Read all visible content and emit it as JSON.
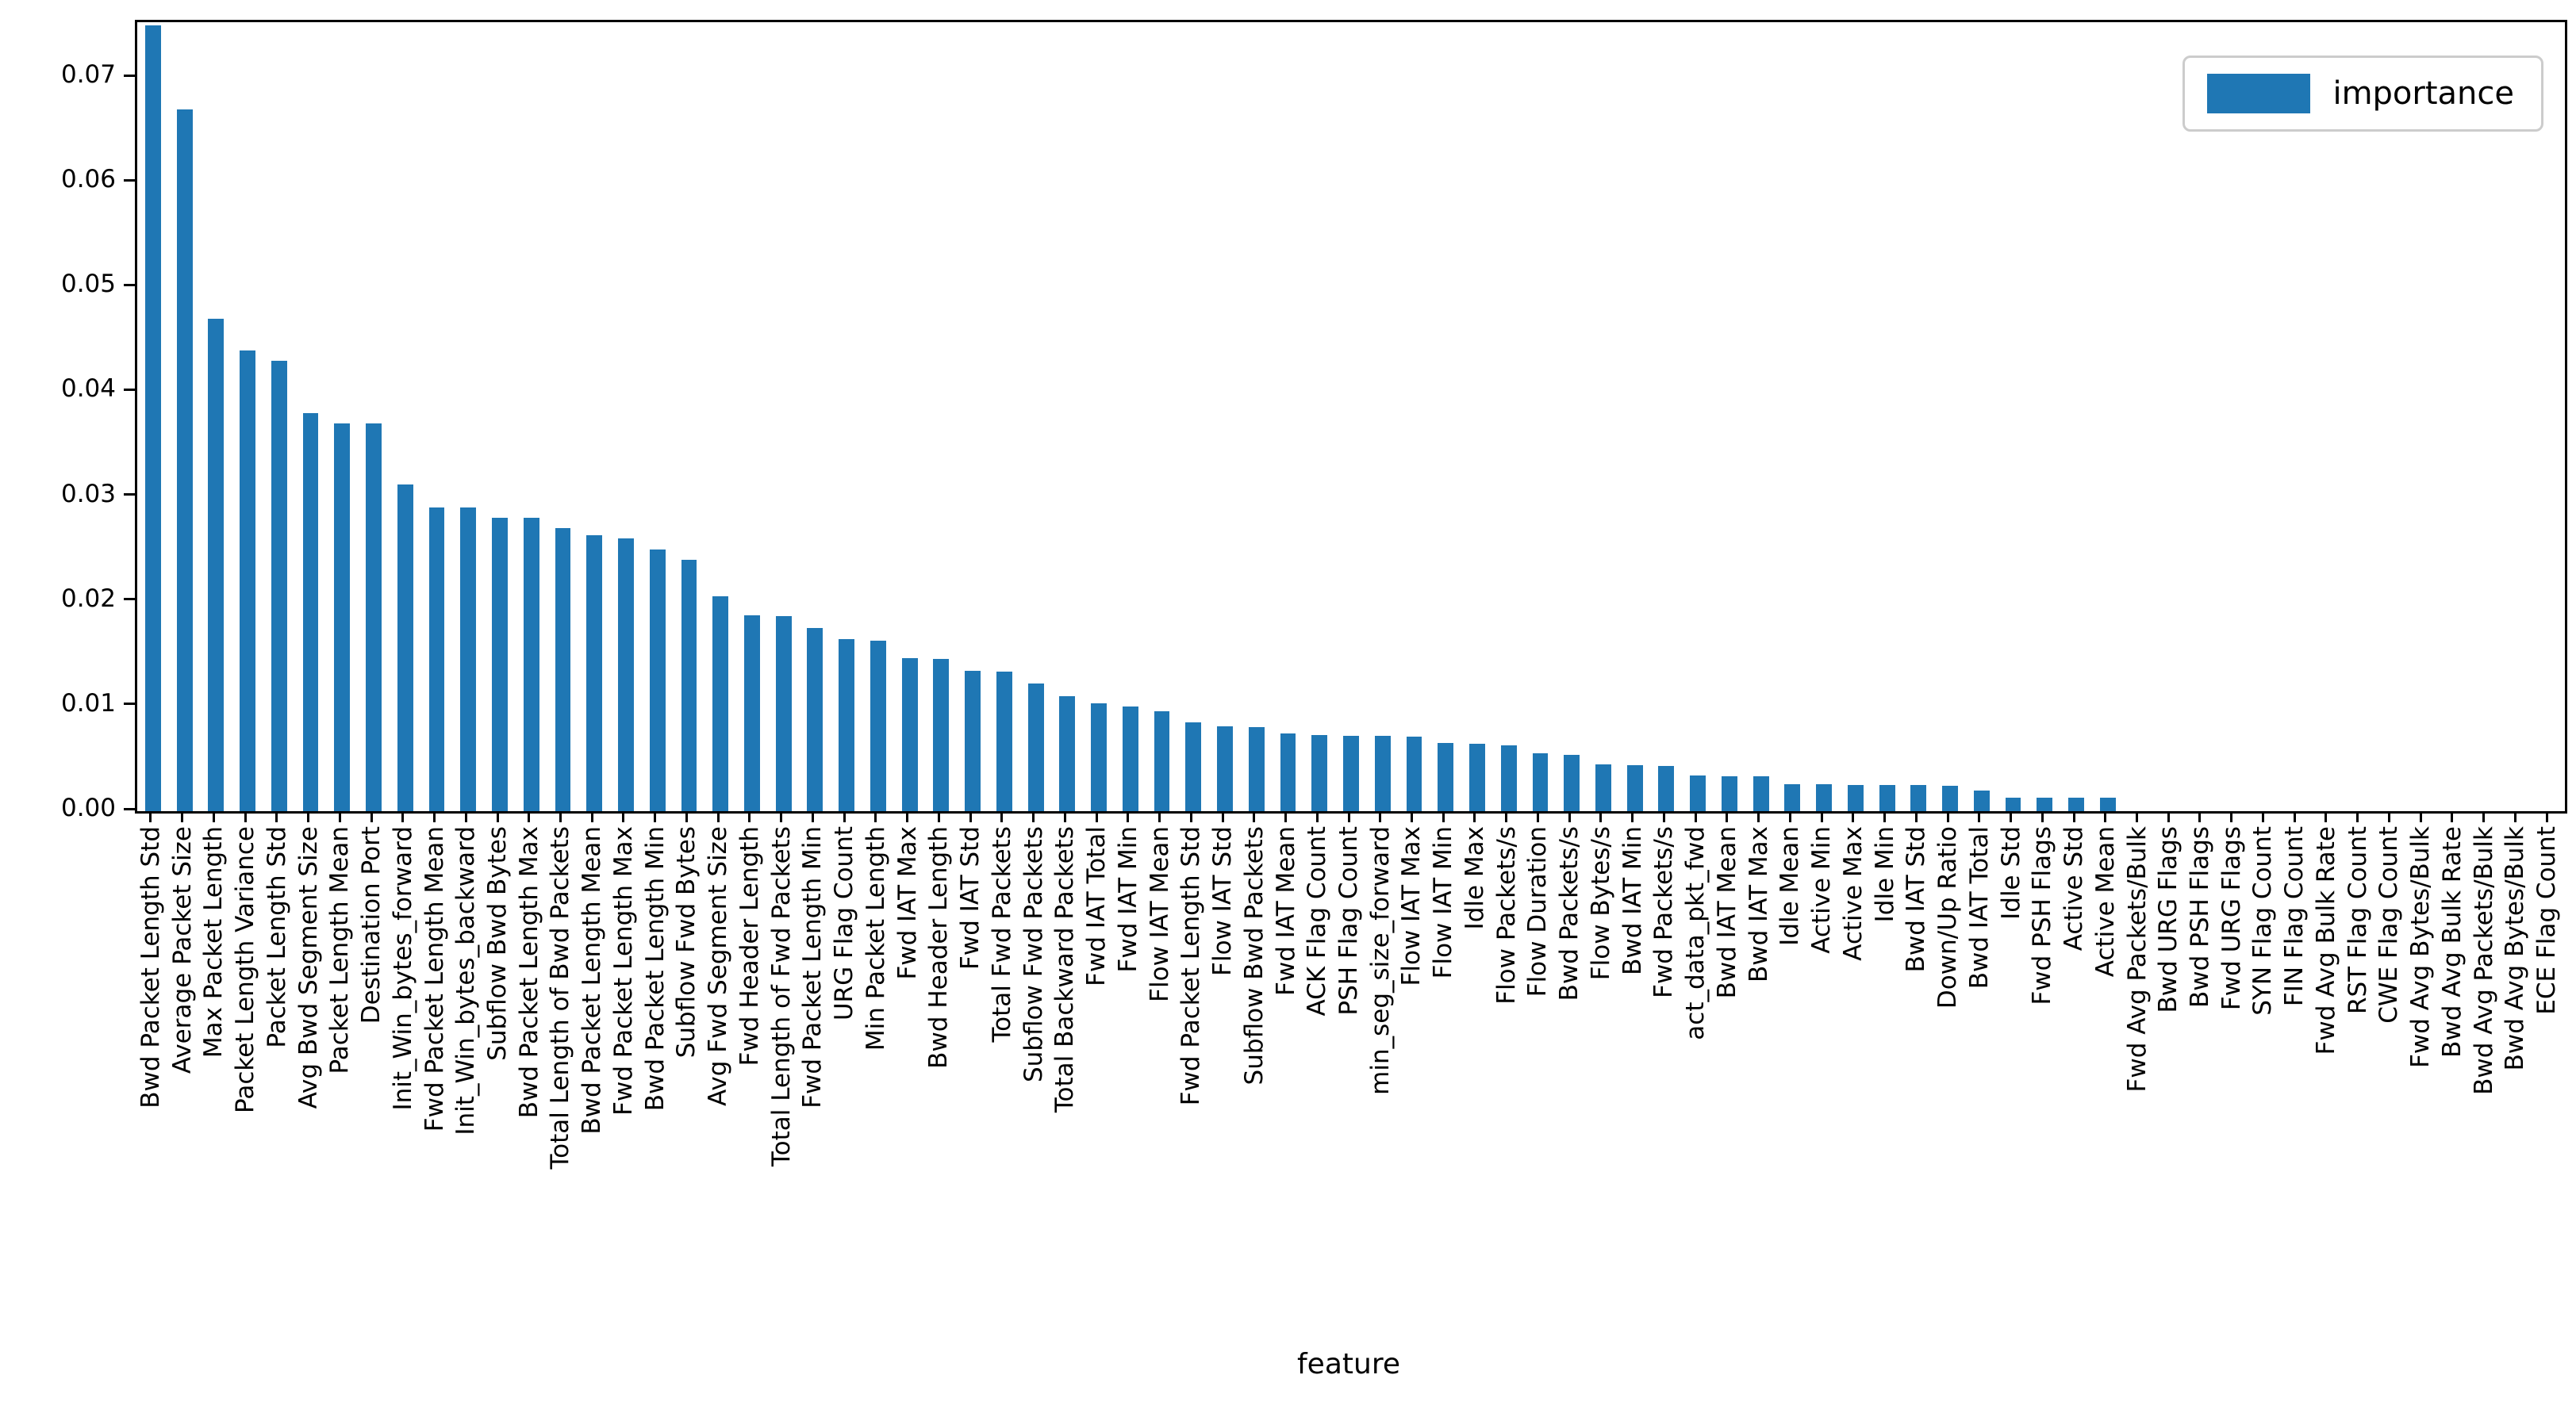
{
  "chart_data": {
    "type": "bar",
    "title": "",
    "xlabel": "feature",
    "ylabel": "",
    "legend": {
      "label": "importance",
      "position": "upper right",
      "swatch_color": "#1f77b4"
    },
    "bar_color": "#1f77b4",
    "background_color": "#ffffff",
    "grid": false,
    "ylim": [
      0,
      0.0753
    ],
    "ytick_values": [
      0.0,
      0.01,
      0.02,
      0.03,
      0.04,
      0.05,
      0.06,
      0.07
    ],
    "ytick_labels": [
      "0.00",
      "0.01",
      "0.02",
      "0.03",
      "0.04",
      "0.05",
      "0.06",
      "0.07"
    ],
    "categories": [
      "Bwd Packet Length Std",
      "Average Packet Size",
      "Max Packet Length",
      "Packet Length Variance",
      "Packet Length Std",
      "Avg Bwd Segment Size",
      "Packet Length Mean",
      "Destination Port",
      "Init_Win_bytes_forward",
      "Fwd Packet Length Mean",
      "Init_Win_bytes_backward",
      "Subflow Bwd Bytes",
      "Bwd Packet Length Max",
      "Total Length of Bwd Packets",
      "Bwd Packet Length Mean",
      "Fwd Packet Length Max",
      "Bwd Packet Length Min",
      "Subflow Fwd Bytes",
      "Avg Fwd Segment Size",
      "Fwd Header Length",
      "Total Length of Fwd Packets",
      "Fwd Packet Length Min",
      "URG Flag Count",
      "Min Packet Length",
      "Fwd IAT Max",
      "Bwd Header Length",
      "Fwd IAT Std",
      "Total Fwd Packets",
      "Subflow Fwd Packets",
      "Total Backward Packets",
      "Fwd IAT Total",
      "Fwd IAT Min",
      "Flow IAT Mean",
      "Fwd Packet Length Std",
      "Flow IAT Std",
      "Subflow Bwd Packets",
      "Fwd IAT Mean",
      "ACK Flag Count",
      "PSH Flag Count",
      "min_seg_size_forward",
      "Flow IAT Max",
      "Flow IAT Min",
      "Idle Max",
      "Flow Packets/s",
      "Flow Duration",
      "Bwd Packets/s",
      "Flow Bytes/s",
      "Bwd IAT Min",
      "Fwd Packets/s",
      "act_data_pkt_fwd",
      "Bwd IAT Mean",
      "Bwd IAT Max",
      "Idle Mean",
      "Active Min",
      "Active Max",
      "Idle Min",
      "Bwd IAT Std",
      "Down/Up Ratio",
      "Bwd IAT Total",
      "Idle Std",
      "Fwd PSH Flags",
      "Active Std",
      "Active Mean",
      "Fwd Avg Packets/Bulk",
      "Bwd URG Flags",
      "Bwd PSH Flags",
      "Fwd URG Flags",
      "SYN Flag Count",
      "FIN Flag Count",
      "Fwd Avg Bulk Rate",
      "RST Flag Count",
      "CWE Flag Count",
      "Fwd Avg Bytes/Bulk",
      "Bwd Avg Bulk Rate",
      "Bwd Avg Packets/Bulk",
      "Bwd Avg Bytes/Bulk",
      "ECE Flag Count"
    ],
    "values": [
      0.075,
      0.067,
      0.047,
      0.044,
      0.043,
      0.038,
      0.037,
      0.037,
      0.0312,
      0.029,
      0.029,
      0.028,
      0.028,
      0.027,
      0.0263,
      0.026,
      0.025,
      0.024,
      0.0205,
      0.0187,
      0.0186,
      0.0175,
      0.0164,
      0.0163,
      0.0146,
      0.0145,
      0.0134,
      0.0133,
      0.0122,
      0.011,
      0.0103,
      0.01,
      0.0095,
      0.0085,
      0.0081,
      0.008,
      0.0074,
      0.0073,
      0.0072,
      0.0072,
      0.0071,
      0.0065,
      0.0064,
      0.0063,
      0.0055,
      0.0054,
      0.0045,
      0.0044,
      0.0043,
      0.0034,
      0.0033,
      0.0033,
      0.0026,
      0.0026,
      0.0025,
      0.0025,
      0.0025,
      0.0024,
      0.002,
      0.0013,
      0.0013,
      0.0013,
      0.0013,
      0.0,
      0.0,
      0.0,
      0.0,
      0.0,
      0.0,
      0.0,
      0.0,
      0.0,
      0.0,
      0.0,
      0.0,
      0.0,
      0.0
    ]
  }
}
